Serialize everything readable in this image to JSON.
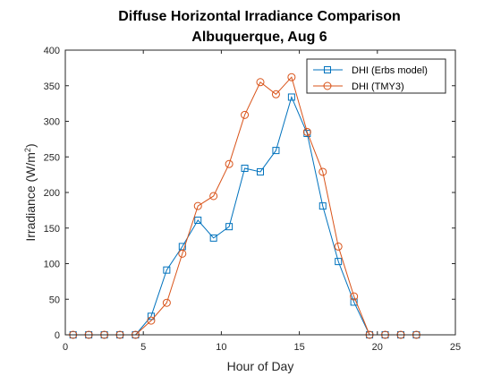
{
  "chart_data": {
    "type": "line",
    "title": [
      "Diffuse Horizontal Irradiance Comparison",
      "Albuquerque, Aug 6"
    ],
    "xlabel": "Hour of Day",
    "ylabel_main": "Irradiance (W/m",
    "ylabel_sup": "2",
    "ylabel_tail": ")",
    "xlim": [
      0,
      25
    ],
    "ylim": [
      0,
      400
    ],
    "xticks": [
      0,
      5,
      10,
      15,
      20,
      25
    ],
    "yticks": [
      0,
      50,
      100,
      150,
      200,
      250,
      300,
      350,
      400
    ],
    "grid": false,
    "legend_position": "top-right",
    "series": [
      {
        "name": "DHI (Erbs model)",
        "color": "#0072BD",
        "marker": "square",
        "x": [
          0.5,
          1.5,
          2.5,
          3.5,
          4.5,
          5.5,
          6.5,
          7.5,
          8.5,
          9.5,
          10.5,
          11.5,
          12.5,
          13.5,
          14.5,
          15.5,
          16.5,
          17.5,
          18.5,
          19.5,
          20.5,
          21.5,
          22.5
        ],
        "y": [
          0,
          0,
          0,
          0,
          0,
          26,
          91,
          124,
          161,
          136,
          152,
          234,
          229,
          259,
          334,
          283,
          181,
          103,
          46,
          0,
          0,
          0,
          0
        ]
      },
      {
        "name": "DHI (TMY3)",
        "color": "#D95319",
        "marker": "circle",
        "x": [
          0.5,
          1.5,
          2.5,
          3.5,
          4.5,
          5.5,
          6.5,
          7.5,
          8.5,
          9.5,
          10.5,
          11.5,
          12.5,
          13.5,
          14.5,
          15.5,
          16.5,
          17.5,
          18.5,
          19.5,
          20.5,
          21.5,
          22.5
        ],
        "y": [
          0,
          0,
          0,
          0,
          0,
          20,
          45,
          114,
          181,
          195,
          240,
          309,
          355,
          338,
          362,
          285,
          229,
          124,
          54,
          0,
          0,
          0,
          0
        ]
      }
    ]
  }
}
